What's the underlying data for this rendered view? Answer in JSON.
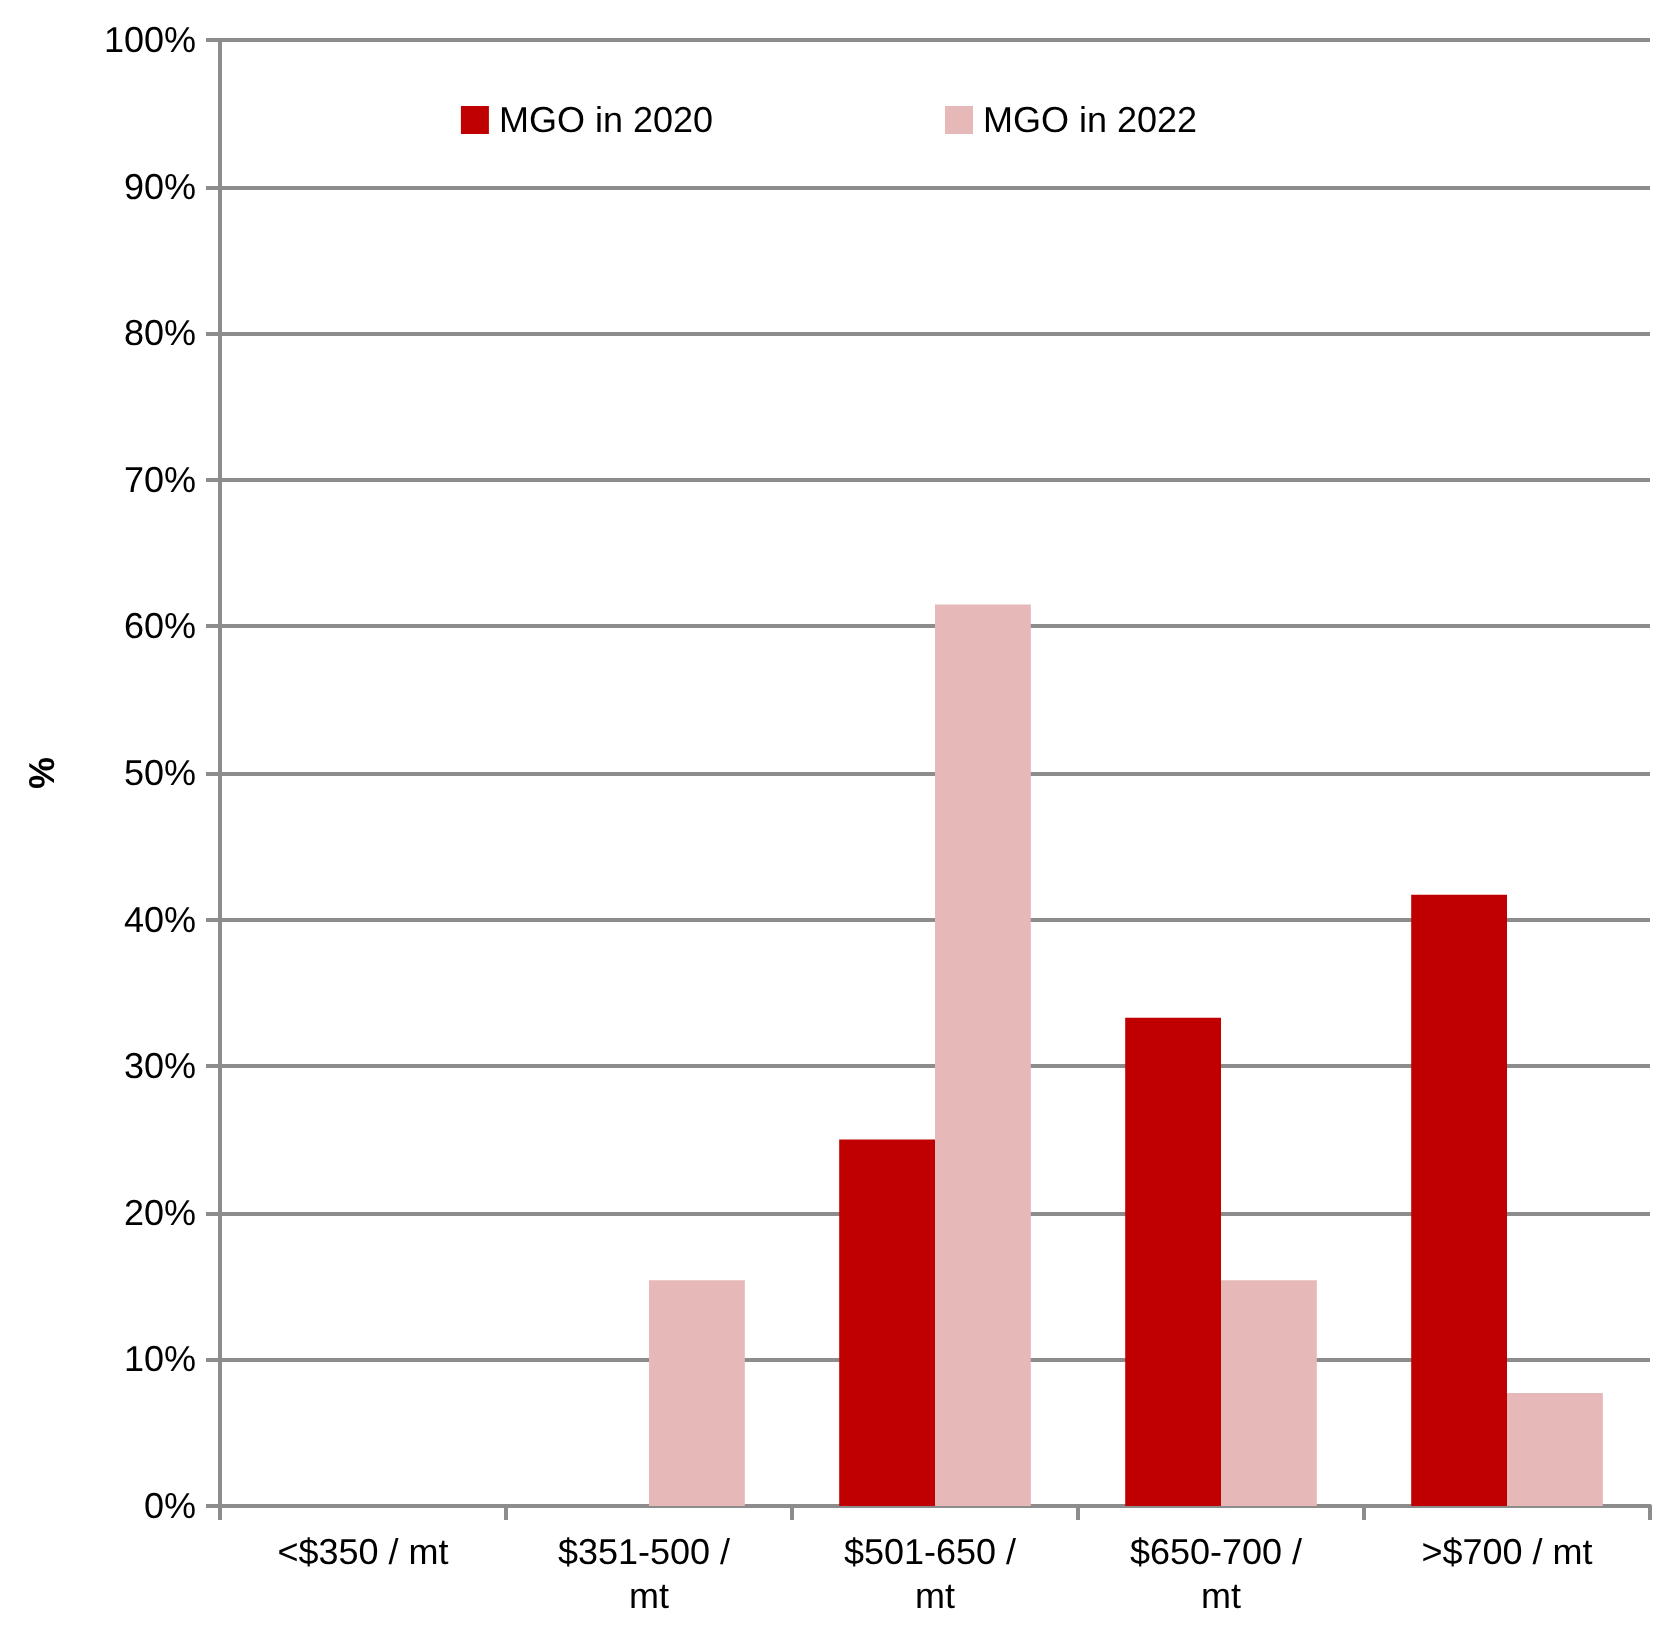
{
  "chart_data": {
    "type": "bar",
    "ylabel": "%",
    "categories": [
      "<$350 / mt",
      "$351-500 / mt",
      "$501-650 / mt",
      "$650-700 / mt",
      ">$700 / mt"
    ],
    "series": [
      {
        "name": "MGO in 2020",
        "color": "#c00000",
        "values": [
          0,
          0,
          25,
          33.3,
          41.7
        ]
      },
      {
        "name": "MGO in 2022",
        "color": "#e6b8b7",
        "values": [
          0,
          15.4,
          61.5,
          15.4,
          7.7
        ]
      }
    ],
    "ylim": [
      0,
      100
    ],
    "yticks": [
      {
        "value": 0,
        "label": "0%"
      },
      {
        "value": 10,
        "label": "10%"
      },
      {
        "value": 20,
        "label": "20%"
      },
      {
        "value": 30,
        "label": "30%"
      },
      {
        "value": 40,
        "label": "40%"
      },
      {
        "value": 50,
        "label": "50%"
      },
      {
        "value": 60,
        "label": "60%"
      },
      {
        "value": 70,
        "label": "70%"
      },
      {
        "value": 80,
        "label": "80%"
      },
      {
        "value": 90,
        "label": "90%"
      },
      {
        "value": 100,
        "label": "100%"
      }
    ],
    "grid": "y",
    "legend": "top"
  }
}
